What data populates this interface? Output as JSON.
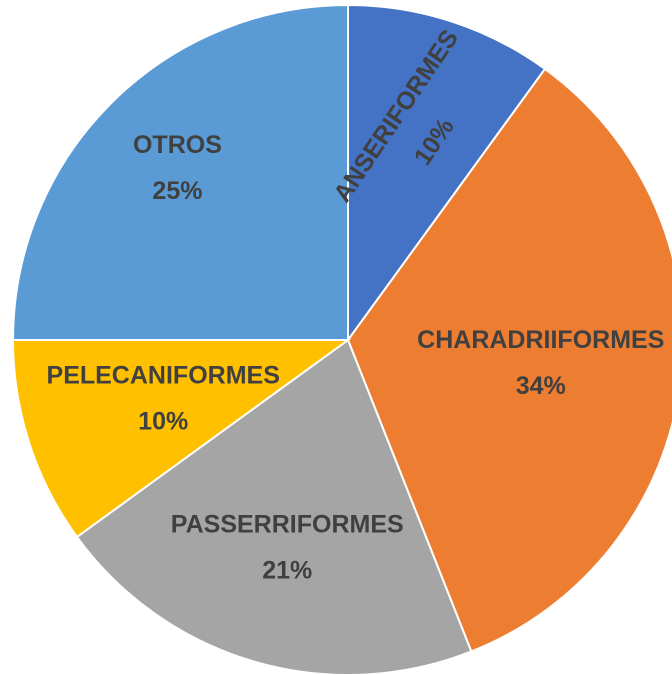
{
  "chart_data": {
    "type": "pie",
    "categories": [
      "ANSERIFORMES",
      "CHARADRIIFORMES",
      "PASSERRIFORMES",
      "PELECANIFORMES",
      "OTROS"
    ],
    "values": [
      10,
      34,
      21,
      10,
      25
    ],
    "value_labels": [
      "10%",
      "34%",
      "21%",
      "10%",
      "25%"
    ],
    "colors": [
      "#4472c4",
      "#ed7d31",
      "#a5a5a5",
      "#ffc000",
      "#5b9bd5"
    ]
  }
}
